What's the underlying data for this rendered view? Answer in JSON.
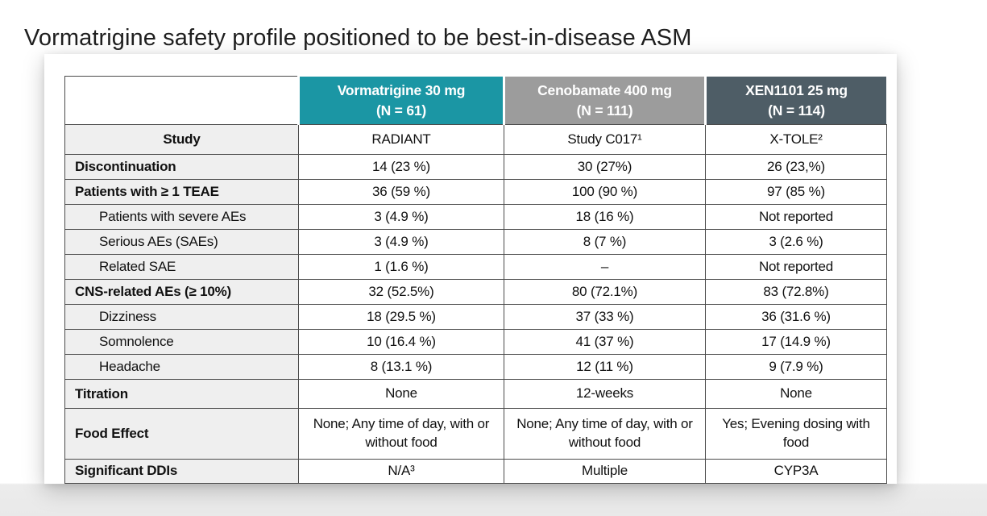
{
  "page": {
    "title": "Vormatrigine safety profile positioned to be best-in-disease ASM"
  },
  "colors": {
    "accent_teal": "#1B96A4",
    "accent_gray": "#9C9C9C",
    "accent_slate": "#4E5D66",
    "label_column_bg": "#EFEFEF",
    "grid_border": "#4B4B4B"
  },
  "table": {
    "drug_columns": [
      {
        "title": "Vormatrigine 30 mg",
        "n": "(N = 61)",
        "color": "#1B96A4"
      },
      {
        "title": "Cenobamate 400 mg",
        "n": "(N = 111)",
        "color": "#9C9C9C"
      },
      {
        "title": "XEN1101 25 mg",
        "n": "(N = 114)",
        "color": "#4E5D66"
      }
    ],
    "rows": [
      {
        "label": "Study",
        "style": "bold-center",
        "values": [
          "RADIANT",
          "Study C017¹",
          "X-TOLE²"
        ]
      },
      {
        "label": "Discontinuation",
        "style": "bold",
        "values": [
          "14 (23 %)",
          "30 (27%)",
          "26 (23,%)"
        ]
      },
      {
        "label": "Patients with ≥ 1 TEAE",
        "style": "bold",
        "values": [
          "36 (59 %)",
          "100 (90 %)",
          "97 (85 %)"
        ]
      },
      {
        "label": "Patients with severe AEs",
        "style": "indent",
        "values": [
          "3 (4.9 %)",
          "18 (16 %)",
          "Not reported"
        ]
      },
      {
        "label": "Serious AEs (SAEs)",
        "style": "indent",
        "values": [
          "3 (4.9 %)",
          "8 (7 %)",
          "3 (2.6 %)"
        ]
      },
      {
        "label": "Related SAE",
        "style": "indent",
        "values": [
          "1 (1.6 %)",
          "–",
          "Not reported"
        ]
      },
      {
        "label": "CNS-related AEs (≥ 10%)",
        "style": "bold",
        "values": [
          "32 (52.5%)",
          "80 (72.1%)",
          "83 (72.8%)"
        ]
      },
      {
        "label": "Dizziness",
        "style": "indent",
        "values": [
          "18 (29.5 %)",
          "37 (33 %)",
          "36 (31.6 %)"
        ]
      },
      {
        "label": "Somnolence",
        "style": "indent",
        "values": [
          "10 (16.4 %)",
          "41 (37 %)",
          "17 (14.9 %)"
        ]
      },
      {
        "label": "Headache",
        "style": "indent",
        "values": [
          "8 (13.1 %)",
          "12 (11 %)",
          "9  (7.9 %)"
        ]
      },
      {
        "label": "Titration",
        "style": "bold",
        "values": [
          "None",
          "12-weeks",
          "None"
        ]
      },
      {
        "label": "Food Effect",
        "style": "bold",
        "values": [
          "None; Any time of day, with or without food",
          "None; Any time of day, with or without food",
          "Yes; Evening dosing with food"
        ]
      },
      {
        "label": "Significant DDIs",
        "style": "bold",
        "values": [
          "N/A³",
          "Multiple",
          "CYP3A"
        ]
      }
    ]
  }
}
